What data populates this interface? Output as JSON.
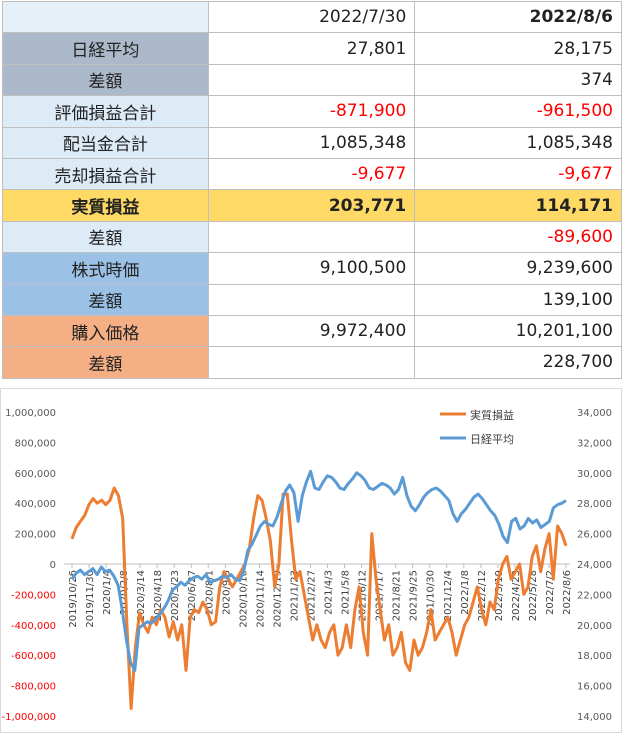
{
  "table": {
    "col1_header": "2022/7/30",
    "col2_header": "2022/8/6",
    "rows": [
      {
        "label": "日経平均",
        "v1": "27,801",
        "v2": "28,175"
      },
      {
        "label": "差額",
        "v1": "",
        "v2": "374"
      },
      {
        "label": "評価損益合計",
        "v1": "-871,900",
        "v2": "-961,500"
      },
      {
        "label": "配当金合計",
        "v1": "1,085,348",
        "v2": "1,085,348"
      },
      {
        "label": "売却損益合計",
        "v1": "-9,677",
        "v2": "-9,677"
      },
      {
        "label": "実質損益",
        "v1": "203,771",
        "v2": "114,171"
      },
      {
        "label": "差額",
        "v1": "",
        "v2": "-89,600"
      },
      {
        "label": "株式時価",
        "v1": "9,100,500",
        "v2": "9,239,600"
      },
      {
        "label": "差額",
        "v1": "",
        "v2": "139,100"
      },
      {
        "label": "購入価格",
        "v1": "9,972,400",
        "v2": "10,201,100"
      },
      {
        "label": "差額",
        "v1": "",
        "v2": "228,700"
      }
    ],
    "colors": {
      "gray": "#acb9ca",
      "light": "#ddebf7",
      "yellow": "#ffd966",
      "blue": "#9bc2e6",
      "orange": "#f4b084",
      "negative": "#ff0000"
    }
  },
  "chart_data": {
    "type": "line",
    "title": "",
    "xlabel": "",
    "ylabel": "",
    "legend_position": "top-right",
    "grid": false,
    "series": [
      {
        "name": "実質損益",
        "axis": "left",
        "color": "#ed7d31",
        "values": [
          165000,
          240000,
          280000,
          320000,
          390000,
          430000,
          400000,
          420000,
          390000,
          420000,
          500000,
          450000,
          300000,
          -400000,
          -950000,
          -550000,
          -320000,
          -400000,
          -450000,
          -350000,
          -400000,
          -300000,
          -350000,
          -480000,
          -380000,
          -500000,
          -400000,
          -700000,
          -350000,
          -300000,
          -320000,
          -250000,
          -300000,
          -400000,
          -380000,
          -150000,
          -50000,
          -100000,
          -150000,
          -100000,
          -50000,
          0,
          100000,
          300000,
          450000,
          420000,
          300000,
          150000,
          -150000,
          0,
          460000,
          460000,
          150000,
          -100000,
          -50000,
          -200000,
          -350000,
          -500000,
          -400000,
          -500000,
          -550000,
          -450000,
          -400000,
          -600000,
          -550000,
          -400000,
          -550000,
          -300000,
          -150000,
          -450000,
          -600000,
          200000,
          -100000,
          -300000,
          -500000,
          -400000,
          -600000,
          -550000,
          -450000,
          -650000,
          -700000,
          -500000,
          -600000,
          -550000,
          -450000,
          -300000,
          -500000,
          -450000,
          -400000,
          -350000,
          -450000,
          -600000,
          -500000,
          -400000,
          -350000,
          -250000,
          -150000,
          -300000,
          -400000,
          -250000,
          -300000,
          -100000,
          0,
          50000,
          -100000,
          -50000,
          0,
          -200000,
          -150000,
          50000,
          120000,
          -50000,
          100000,
          200000,
          -100000,
          250000,
          200000,
          120000
        ]
      },
      {
        "name": "日経平均",
        "axis": "right",
        "color": "#5b9bd5",
        "values": [
          23000,
          23400,
          23600,
          23300,
          23500,
          23700,
          23300,
          23800,
          23500,
          23600,
          23200,
          22600,
          21000,
          19000,
          17500,
          17000,
          19800,
          20000,
          20200,
          20100,
          20400,
          20700,
          21100,
          21600,
          22300,
          22500,
          22800,
          22600,
          22900,
          23100,
          23200,
          23000,
          23300,
          22800,
          22900,
          23000,
          23200,
          23100,
          23300,
          23000,
          22900,
          23500,
          24900,
          25300,
          25900,
          26500,
          26800,
          26600,
          26500,
          27100,
          28000,
          28800,
          29200,
          28700,
          26800,
          28500,
          29400,
          30100,
          29000,
          28900,
          29400,
          29800,
          29700,
          29400,
          29000,
          28900,
          29300,
          29600,
          30000,
          29800,
          29500,
          29000,
          28900,
          29100,
          29300,
          29200,
          29000,
          28600,
          28900,
          29700,
          28500,
          27800,
          27500,
          27900,
          28400,
          28700,
          28900,
          29000,
          28800,
          28500,
          28200,
          27300,
          26800,
          27300,
          27600,
          28000,
          28400,
          28600,
          28300,
          27900,
          27500,
          27200,
          26600,
          25800,
          25400,
          26800,
          27000,
          26300,
          26500,
          27000,
          26700,
          26900,
          26400,
          26600,
          26800,
          27700,
          27900,
          28000,
          28175
        ]
      }
    ],
    "x_ticks": [
      "2019/10/26",
      "2019/11/30",
      "2020/1/4",
      "2020/2/8",
      "2020/3/14",
      "2020/4/18",
      "2020/5/23",
      "2020/6/27",
      "2020/8/1",
      "2020/9/5",
      "2020/10/10",
      "2020/11/14",
      "2020/12/19",
      "2021/1/23",
      "2021/2/27",
      "2021/4/3",
      "2021/5/8",
      "2021/6/12",
      "2021/7/17",
      "2021/8/21",
      "2021/9/25",
      "2021/10/30",
      "2021/12/4",
      "2022/1/8",
      "2022/2/12",
      "2022/3/19",
      "2022/4/23",
      "2022/5/28",
      "2022/7/2",
      "2022/8/6"
    ],
    "y_left_ticks": [
      "1,000,000",
      "800,000",
      "600,000",
      "400,000",
      "200,000",
      "0",
      "-200,000",
      "-400,000",
      "-600,000",
      "-800,000",
      "-1,000,000"
    ],
    "y_right_ticks": [
      "34,000",
      "32,000",
      "30,000",
      "28,000",
      "26,000",
      "24,000",
      "22,000",
      "20,000",
      "18,000",
      "16,000",
      "14,000"
    ],
    "ylim_left": [
      -1000000,
      1000000
    ],
    "ylim_right": [
      14000,
      34000
    ]
  }
}
